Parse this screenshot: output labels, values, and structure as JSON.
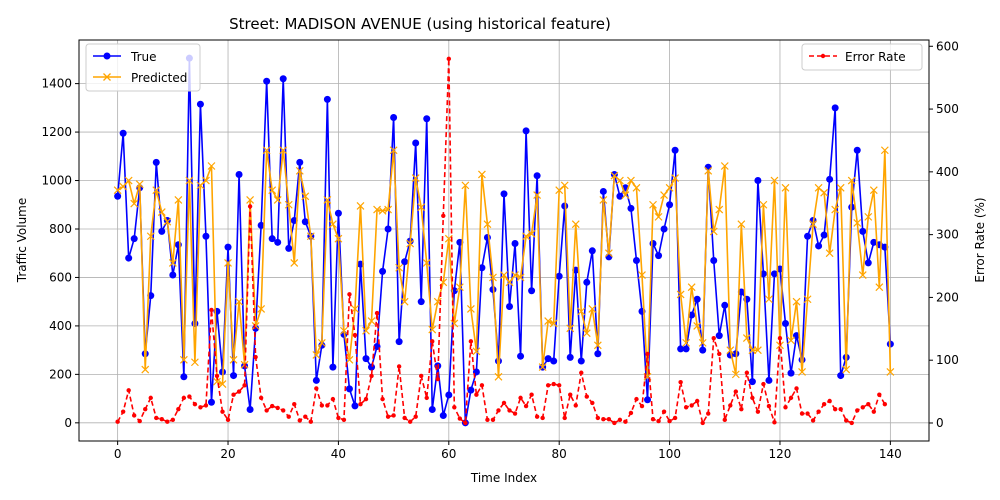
{
  "chart_data": {
    "type": "line",
    "title": "Street: MADISON AVENUE (using historical feature)",
    "xlabel": "Time Index",
    "ylabel": "Traffic Volume",
    "y2label": "Error Rate (%)",
    "xlim": [
      -7,
      147
    ],
    "ylim": [
      -75,
      1580
    ],
    "y2lim": [
      -28.7,
      610
    ],
    "xticks": [
      0,
      20,
      40,
      60,
      80,
      100,
      120,
      140
    ],
    "yticks": [
      0,
      200,
      400,
      600,
      800,
      1000,
      1200,
      1400
    ],
    "y2ticks": [
      0,
      100,
      200,
      300,
      400,
      500,
      600
    ],
    "grid": true,
    "legend_left": [
      "True",
      "Predicted"
    ],
    "legend_right": [
      "Error Rate"
    ],
    "colors": {
      "true": "#0000ff",
      "predicted": "#ffa500",
      "error": "#ff0000",
      "grid": "#b0b0b0"
    },
    "series": [
      {
        "name": "True",
        "axis": "left",
        "values": [
          935,
          1195,
          680,
          760,
          970,
          285,
          525,
          1075,
          790,
          835,
          610,
          735,
          190,
          1505,
          410,
          1315,
          770,
          85,
          460,
          210,
          725,
          195,
          1025,
          235,
          55,
          390,
          815,
          1410,
          760,
          745,
          1420,
          720,
          835,
          1075,
          830,
          770,
          175,
          320,
          1335,
          230,
          865,
          365,
          140,
          70,
          655,
          265,
          230,
          315,
          625,
          800,
          1260,
          335,
          665,
          750,
          1155,
          500,
          1255,
          55,
          235,
          30,
          115,
          545,
          745,
          0,
          135,
          210,
          640,
          765,
          550,
          255,
          945,
          480,
          740,
          275,
          1205,
          545,
          1020,
          230,
          265,
          255,
          605,
          895,
          270,
          630,
          255,
          580,
          710,
          285,
          955,
          685,
          1025,
          935,
          970,
          885,
          670,
          460,
          95,
          740,
          690,
          800,
          900,
          1125,
          305,
          305,
          445,
          510,
          300,
          1055,
          670,
          360,
          485,
          280,
          285,
          540,
          510,
          170,
          1000,
          615,
          175,
          615,
          635,
          410,
          205,
          360,
          260,
          770,
          835,
          730,
          775,
          1005,
          1300,
          195,
          270,
          890,
          1125,
          790,
          660,
          745,
          735,
          725,
          325
        ]
      },
      {
        "name": "Predicted",
        "axis": "left",
        "values": [
          960,
          975,
          1000,
          905,
          985,
          220,
          770,
          960,
          870,
          830,
          660,
          920,
          260,
          1000,
          250,
          980,
          1000,
          1060,
          170,
          160,
          660,
          260,
          500,
          240,
          920,
          400,
          470,
          1125,
          960,
          920,
          1125,
          900,
          660,
          1040,
          935,
          770,
          280,
          330,
          920,
          820,
          760,
          380,
          260,
          470,
          895,
          380,
          420,
          880,
          875,
          880,
          1125,
          640,
          500,
          740,
          1010,
          890,
          660,
          385,
          500,
          580,
          760,
          410,
          560,
          980,
          470,
          295,
          1025,
          820,
          600,
          190,
          610,
          580,
          610,
          600,
          770,
          780,
          940,
          230,
          420,
          410,
          960,
          980,
          390,
          820,
          460,
          370,
          470,
          320,
          920,
          700,
          1020,
          1000,
          940,
          1000,
          970,
          610,
          190,
          900,
          850,
          940,
          970,
          1010,
          530,
          330,
          560,
          400,
          330,
          1040,
          790,
          880,
          1060,
          300,
          200,
          820,
          350,
          300,
          300,
          900,
          510,
          1000,
          320,
          970,
          340,
          500,
          210,
          510,
          820,
          970,
          950,
          700,
          880,
          970,
          220,
          1000,
          825,
          610,
          850,
          960,
          560,
          1125,
          210
        ]
      },
      {
        "name": "Error Rate",
        "axis": "right",
        "values": [
          2,
          18,
          52,
          12,
          3,
          22,
          40,
          8,
          6,
          2,
          5,
          22,
          40,
          42,
          30,
          25,
          28,
          180,
          75,
          18,
          5,
          45,
          50,
          60,
          345,
          105,
          40,
          20,
          27,
          24,
          20,
          10,
          30,
          4,
          10,
          2,
          55,
          28,
          28,
          38,
          8,
          5,
          205,
          140,
          30,
          38,
          75,
          175,
          38,
          10,
          12,
          90,
          8,
          2,
          10,
          75,
          40,
          130,
          70,
          330,
          580,
          25,
          7,
          0,
          130,
          45,
          60,
          5,
          5,
          20,
          32,
          20,
          15,
          40,
          27,
          45,
          10,
          8,
          60,
          62,
          60,
          8,
          45,
          28,
          80,
          42,
          32,
          8,
          6,
          6,
          0,
          5,
          2,
          16,
          38,
          27,
          110,
          6,
          3,
          18,
          3,
          8,
          65,
          25,
          28,
          35,
          0,
          15,
          135,
          110,
          5,
          28,
          50,
          22,
          80,
          40,
          18,
          62,
          27,
          1,
          135,
          25,
          40,
          55,
          15,
          15,
          4,
          18,
          30,
          35,
          22,
          22,
          4,
          0,
          20,
          25,
          30,
          18,
          45,
          30
        ]
      }
    ]
  }
}
